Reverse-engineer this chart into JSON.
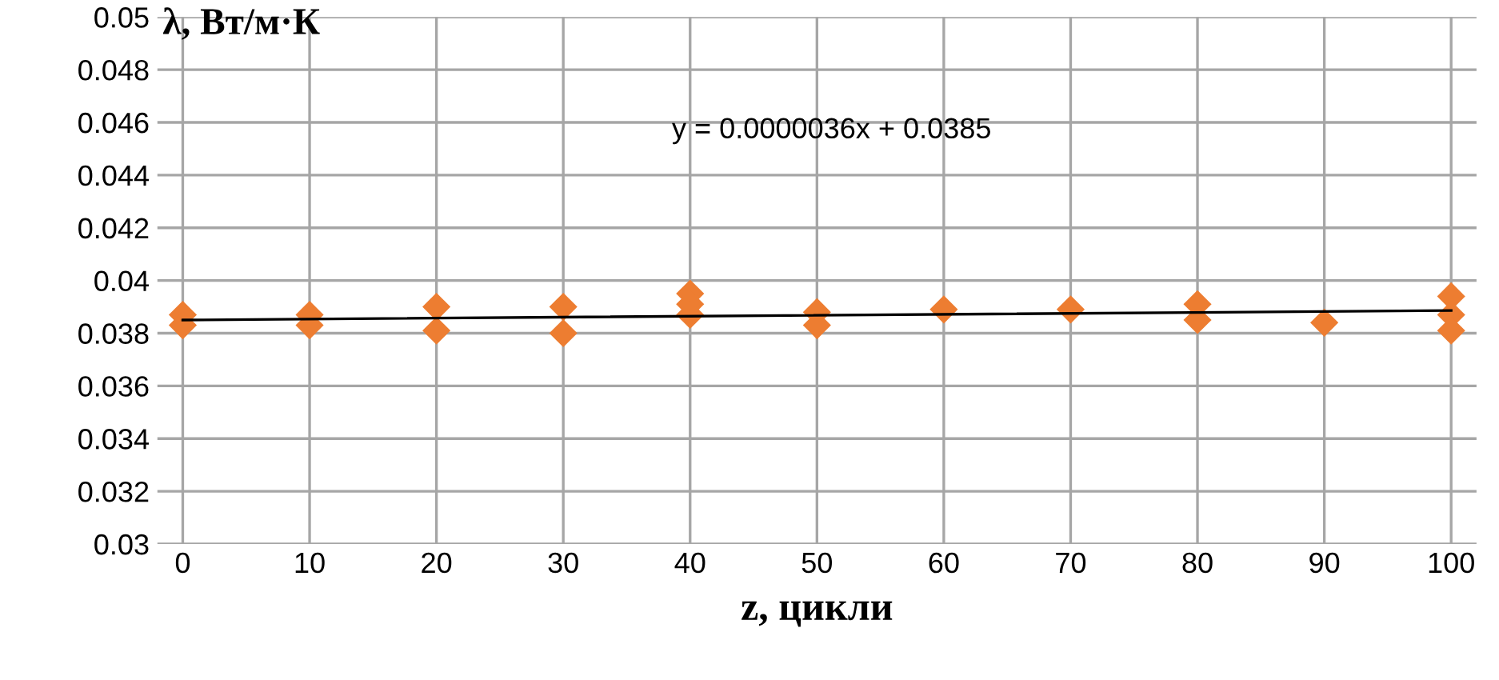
{
  "chart_data": {
    "type": "scatter",
    "xlabel": "z, цикли",
    "ylabel": "λ, Вт/м·К",
    "annotations": [
      "y = 0.0000036x + 0.0385"
    ],
    "series": [
      {
        "color": "#ed7d31",
        "marker": "diamond",
        "x": [
          0,
          0,
          10,
          10,
          20,
          20,
          30,
          30,
          40,
          40,
          40,
          50,
          50,
          60,
          70,
          80,
          80,
          90,
          100,
          100,
          100
        ],
        "values": [
          0.0387,
          0.0383,
          0.0387,
          0.0383,
          0.039,
          0.0381,
          0.039,
          0.038,
          0.0395,
          0.0391,
          0.0387,
          0.0388,
          0.0383,
          0.0389,
          0.0389,
          0.0391,
          0.0385,
          0.0384,
          0.0394,
          0.0387,
          0.0381
        ]
      },
      {
        "type": "line",
        "color": "#000000",
        "marker": "none",
        "line_style": "solid",
        "x": [
          0,
          100
        ],
        "values": [
          0.0385,
          0.03886
        ]
      }
    ],
    "xlim": [
      -2,
      102
    ],
    "xticks": [
      0,
      10,
      20,
      30,
      40,
      50,
      60,
      70,
      80,
      90,
      100
    ],
    "ylim": [
      0.03,
      0.05
    ],
    "yticks": [
      0.03,
      0.032,
      0.034,
      0.036,
      0.038,
      0.04,
      0.042,
      0.044,
      0.046,
      0.048,
      0.05
    ],
    "grid": true,
    "legend": false
  }
}
